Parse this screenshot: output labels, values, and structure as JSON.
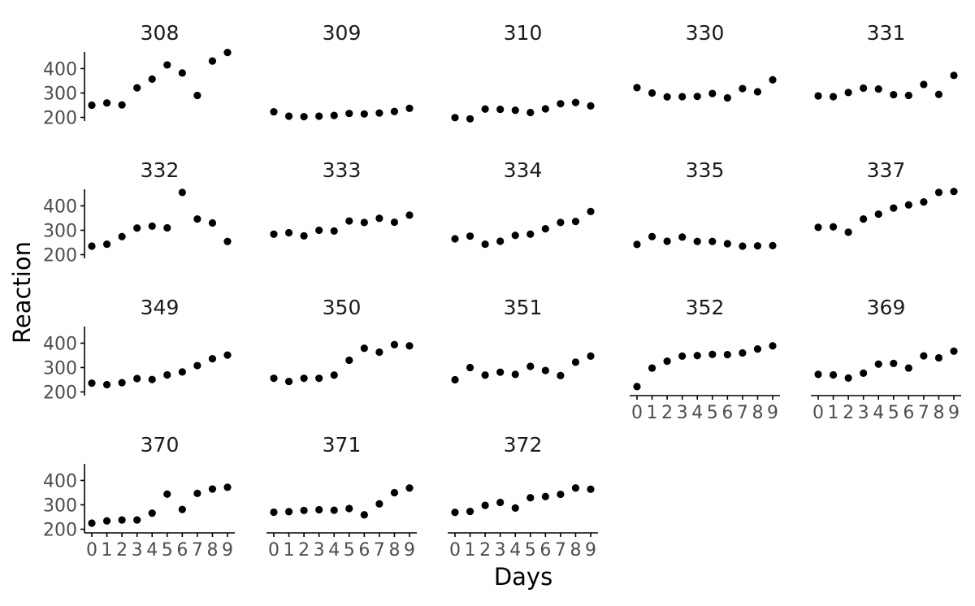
{
  "chart_data": {
    "type": "scatter",
    "xlabel": "Days",
    "ylabel": "Reaction",
    "x": [
      0,
      1,
      2,
      3,
      4,
      5,
      6,
      7,
      8,
      9
    ],
    "x_tick_labels": [
      "0",
      "1",
      "2",
      "3",
      "4",
      "5",
      "6",
      "7",
      "8",
      "9"
    ],
    "y_ticks": [
      200,
      300,
      400
    ],
    "y_tick_labels": [
      "200",
      "300",
      "400"
    ],
    "ylim": [
      185,
      468
    ],
    "grid": false,
    "legend": "none",
    "point_color": "#000000",
    "facets": [
      {
        "label": "308",
        "values": [
          250,
          259,
          251,
          321,
          357,
          415,
          382,
          290,
          431,
          466
        ]
      },
      {
        "label": "309",
        "values": [
          223,
          205,
          203,
          205,
          208,
          216,
          214,
          218,
          224,
          237
        ]
      },
      {
        "label": "310",
        "values": [
          199,
          194,
          234,
          233,
          229,
          220,
          235,
          256,
          261,
          247
        ]
      },
      {
        "label": "330",
        "values": [
          322,
          300,
          284,
          285,
          286,
          298,
          280,
          318,
          305,
          354
        ]
      },
      {
        "label": "331",
        "values": [
          288,
          285,
          302,
          320,
          316,
          293,
          290,
          335,
          294,
          372
        ]
      },
      {
        "label": "332",
        "values": [
          235,
          243,
          274,
          309,
          317,
          310,
          455,
          346,
          330,
          254
        ]
      },
      {
        "label": "333",
        "values": [
          284,
          290,
          277,
          300,
          297,
          338,
          332,
          349,
          333,
          362
        ]
      },
      {
        "label": "334",
        "values": [
          265,
          276,
          243,
          255,
          279,
          284,
          306,
          332,
          336,
          377
        ]
      },
      {
        "label": "335",
        "values": [
          242,
          274,
          255,
          272,
          254,
          254,
          245,
          235,
          236,
          237
        ]
      },
      {
        "label": "337",
        "values": [
          312,
          314,
          292,
          346,
          366,
          391,
          404,
          416,
          455,
          459
        ]
      },
      {
        "label": "349",
        "values": [
          236,
          230,
          238,
          255,
          251,
          270,
          282,
          308,
          336,
          351
        ]
      },
      {
        "label": "350",
        "values": [
          256,
          243,
          256,
          256,
          269,
          330,
          379,
          363,
          394,
          389
        ]
      },
      {
        "label": "351",
        "values": [
          250,
          300,
          269,
          281,
          272,
          305,
          288,
          267,
          322,
          347
        ]
      },
      {
        "label": "352",
        "values": [
          222,
          298,
          326,
          347,
          349,
          354,
          353,
          360,
          376,
          389
        ]
      },
      {
        "label": "369",
        "values": [
          272,
          270,
          257,
          277,
          314,
          317,
          298,
          348,
          340,
          367
        ]
      },
      {
        "label": "370",
        "values": [
          225,
          234,
          238,
          238,
          266,
          344,
          281,
          347,
          365,
          372
        ]
      },
      {
        "label": "371",
        "values": [
          270,
          272,
          277,
          280,
          278,
          285,
          259,
          304,
          350,
          369
        ]
      },
      {
        "label": "372",
        "values": [
          269,
          273,
          298,
          310,
          287,
          329,
          334,
          343,
          369,
          364
        ]
      }
    ]
  }
}
